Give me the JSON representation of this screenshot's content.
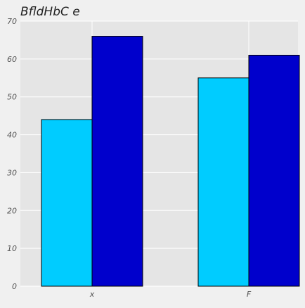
{
  "chart_data": {
    "type": "bar",
    "title": "BfldHbC e",
    "xlabel": "",
    "ylabel": "",
    "categories": [
      "x",
      "F"
    ],
    "series": [
      {
        "values": [
          44,
          55
        ],
        "color": "#00ccff"
      },
      {
        "values": [
          66,
          61
        ],
        "color": "#0000cc"
      }
    ],
    "ylim": [
      0,
      70
    ],
    "yticks": [
      0,
      10,
      20,
      30,
      40,
      50,
      60,
      70
    ],
    "grid": true,
    "legend": "none"
  },
  "colors": {
    "figure_background": "#f0f0f0",
    "plot_background": "#e5e5e5",
    "grid": "#ffffff",
    "text": "#555555",
    "title": "#222222"
  }
}
